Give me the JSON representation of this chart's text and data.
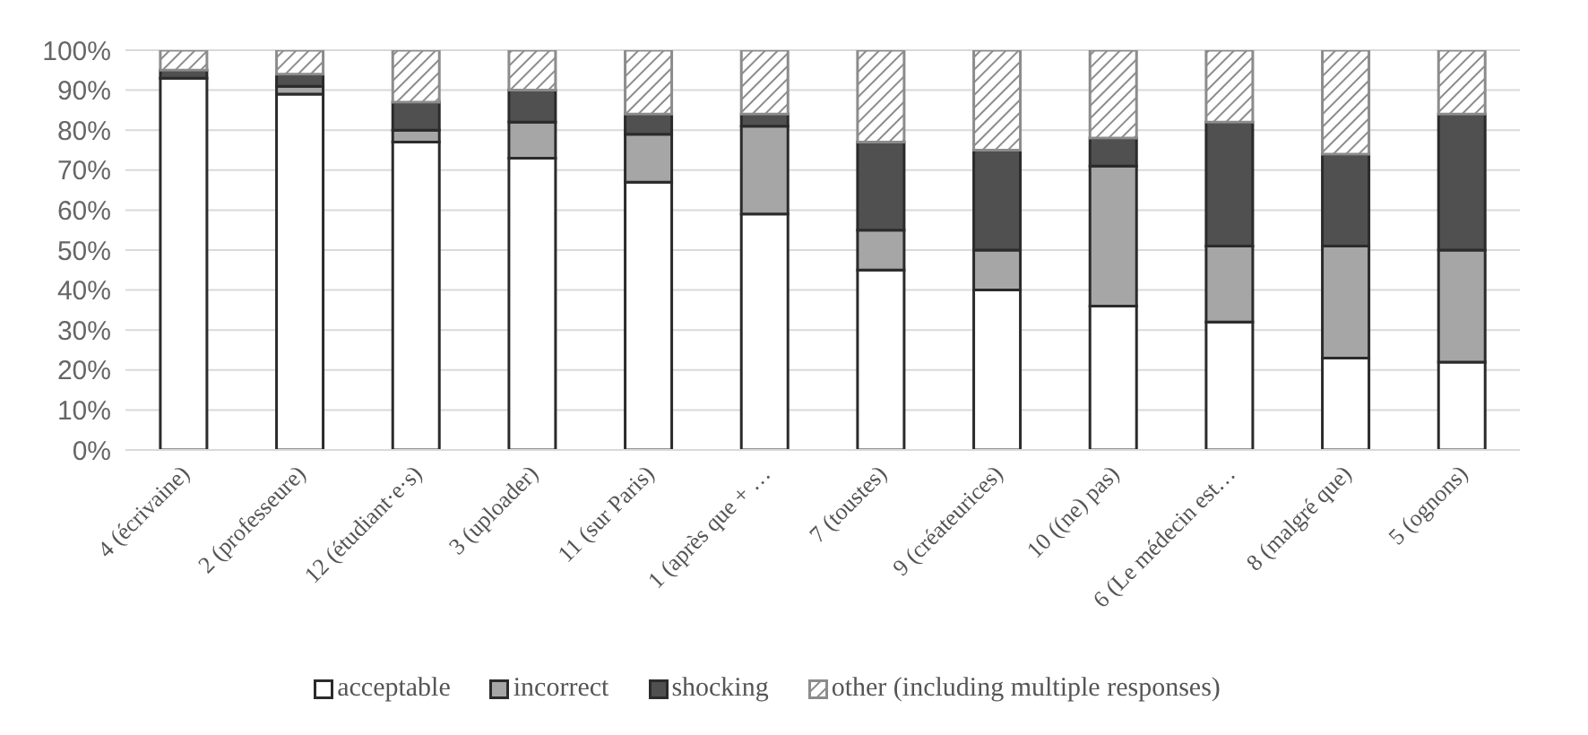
{
  "chart_data": {
    "type": "bar",
    "stacked": true,
    "categories": [
      "4 (écrivaine)",
      "2 (professeure)",
      "12 (étudiant·e·s)",
      "3 (uploader)",
      "11 (sur Paris)",
      "1 (après que + …",
      "7 (toustes)",
      "9 (créateurices)",
      "10 ((ne) pas)",
      "6 (Le médecin est…",
      "8 (malgré que)",
      "5 (ognons)"
    ],
    "series": [
      {
        "name": "acceptable",
        "color": "#ffffff",
        "values": [
          93,
          89,
          77,
          73,
          67,
          59,
          45,
          40,
          36,
          32,
          23,
          22
        ]
      },
      {
        "name": "incorrect",
        "color": "#a6a6a6",
        "values": [
          0,
          2,
          3,
          9,
          12,
          22,
          10,
          10,
          35,
          19,
          28,
          28
        ]
      },
      {
        "name": "shocking",
        "color": "#505050",
        "values": [
          2,
          3,
          7,
          8,
          5,
          3,
          22,
          25,
          7,
          31,
          23,
          34
        ]
      },
      {
        "name": "other (including multiple responses)",
        "color": "#8c8c8c",
        "values": [
          5,
          6,
          13,
          10,
          16,
          16,
          23,
          25,
          22,
          18,
          26,
          16
        ]
      }
    ],
    "ylim": [
      0,
      100
    ],
    "yticks": [
      {
        "value": 0,
        "label": "0%"
      },
      {
        "value": 10,
        "label": "10%"
      },
      {
        "value": 20,
        "label": "20%"
      },
      {
        "value": 30,
        "label": "30%"
      },
      {
        "value": 40,
        "label": "40%"
      },
      {
        "value": 50,
        "label": "50%"
      },
      {
        "value": 60,
        "label": "60%"
      },
      {
        "value": 70,
        "label": "70%"
      },
      {
        "value": 80,
        "label": "80%"
      },
      {
        "value": 90,
        "label": "90%"
      },
      {
        "value": 100,
        "label": "100%"
      }
    ],
    "grid": "y",
    "legend": "bottom"
  }
}
